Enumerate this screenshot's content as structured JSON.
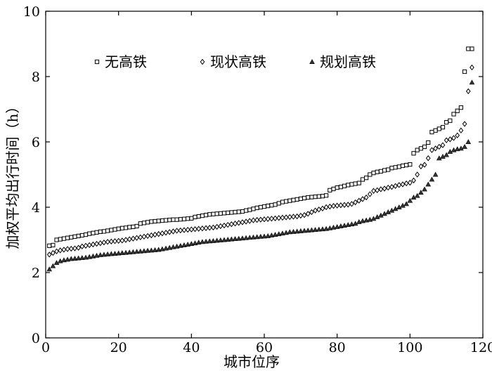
{
  "chart_data": {
    "type": "scatter",
    "title": "",
    "xlabel": "城市位序",
    "ylabel": "加权平均出行时间（h）",
    "xlim": [
      0,
      120
    ],
    "ylim": [
      0,
      10
    ],
    "xticks": [
      0,
      20,
      40,
      60,
      80,
      100,
      120
    ],
    "yticks": [
      0,
      2,
      4,
      6,
      8,
      10
    ],
    "grid": false,
    "legend_position": "top",
    "x": [
      1,
      2,
      3,
      4,
      5,
      6,
      7,
      8,
      9,
      10,
      11,
      12,
      13,
      14,
      15,
      16,
      17,
      18,
      19,
      20,
      21,
      22,
      23,
      24,
      25,
      26,
      27,
      28,
      29,
      30,
      31,
      32,
      33,
      34,
      35,
      36,
      37,
      38,
      39,
      40,
      41,
      42,
      43,
      44,
      45,
      46,
      47,
      48,
      49,
      50,
      51,
      52,
      53,
      54,
      55,
      56,
      57,
      58,
      59,
      60,
      61,
      62,
      63,
      64,
      65,
      66,
      67,
      68,
      69,
      70,
      71,
      72,
      73,
      74,
      75,
      76,
      77,
      78,
      79,
      80,
      81,
      82,
      83,
      84,
      85,
      86,
      87,
      88,
      89,
      90,
      91,
      92,
      93,
      94,
      95,
      96,
      97,
      98,
      99,
      100,
      101,
      102,
      103,
      104,
      105,
      106,
      107,
      108,
      109,
      110,
      111,
      112,
      113,
      114,
      115,
      116,
      117
    ],
    "series": [
      {
        "name": "无高铁",
        "marker": "square",
        "values": [
          2.82,
          2.84,
          3.0,
          3.02,
          3.04,
          3.06,
          3.08,
          3.1,
          3.12,
          3.14,
          3.16,
          3.19,
          3.21,
          3.23,
          3.25,
          3.26,
          3.28,
          3.3,
          3.32,
          3.34,
          3.36,
          3.37,
          3.39,
          3.4,
          3.42,
          3.5,
          3.52,
          3.54,
          3.56,
          3.57,
          3.58,
          3.59,
          3.6,
          3.61,
          3.62,
          3.62,
          3.63,
          3.64,
          3.65,
          3.66,
          3.7,
          3.72,
          3.74,
          3.76,
          3.78,
          3.79,
          3.8,
          3.81,
          3.82,
          3.83,
          3.84,
          3.85,
          3.86,
          3.87,
          3.9,
          3.92,
          3.95,
          3.98,
          4.0,
          4.02,
          4.04,
          4.06,
          4.08,
          4.12,
          4.16,
          4.18,
          4.2,
          4.22,
          4.24,
          4.26,
          4.28,
          4.3,
          4.31,
          4.32,
          4.33,
          4.34,
          4.36,
          4.52,
          4.56,
          4.6,
          4.62,
          4.65,
          4.68,
          4.7,
          4.72,
          4.74,
          4.85,
          4.9,
          5.0,
          5.05,
          5.08,
          5.1,
          5.13,
          5.15,
          5.2,
          5.22,
          5.24,
          5.27,
          5.29,
          5.31,
          5.65,
          5.75,
          5.8,
          5.85,
          5.98,
          6.3,
          6.35,
          6.4,
          6.45,
          6.6,
          6.65,
          6.85,
          6.95,
          7.05,
          8.15,
          8.85,
          8.85
        ]
      },
      {
        "name": "现状高铁",
        "marker": "diamond",
        "values": [
          2.55,
          2.6,
          2.65,
          2.68,
          2.7,
          2.72,
          2.73,
          2.74,
          2.76,
          2.8,
          2.82,
          2.84,
          2.86,
          2.88,
          2.9,
          2.92,
          2.94,
          2.95,
          2.96,
          2.97,
          2.98,
          3.0,
          3.02,
          3.04,
          3.06,
          3.08,
          3.1,
          3.12,
          3.14,
          3.16,
          3.18,
          3.2,
          3.22,
          3.24,
          3.26,
          3.28,
          3.29,
          3.3,
          3.31,
          3.32,
          3.33,
          3.34,
          3.35,
          3.36,
          3.37,
          3.38,
          3.4,
          3.42,
          3.44,
          3.46,
          3.48,
          3.5,
          3.52,
          3.54,
          3.56,
          3.58,
          3.6,
          3.61,
          3.62,
          3.63,
          3.64,
          3.65,
          3.66,
          3.67,
          3.68,
          3.69,
          3.7,
          3.71,
          3.72,
          3.74,
          3.76,
          3.8,
          3.85,
          3.9,
          3.93,
          3.96,
          4.0,
          4.02,
          4.04,
          4.05,
          4.06,
          4.07,
          4.08,
          4.1,
          4.15,
          4.2,
          4.25,
          4.3,
          4.4,
          4.5,
          4.52,
          4.55,
          4.57,
          4.6,
          4.62,
          4.65,
          4.68,
          4.7,
          4.73,
          4.75,
          4.82,
          5.0,
          5.25,
          5.3,
          5.5,
          5.75,
          5.8,
          5.85,
          5.9,
          6.05,
          6.08,
          6.12,
          6.2,
          6.35,
          6.55,
          7.55,
          8.28
        ]
      },
      {
        "name": "规划高铁",
        "marker": "triangle",
        "values": [
          2.1,
          2.2,
          2.3,
          2.35,
          2.38,
          2.4,
          2.42,
          2.43,
          2.44,
          2.45,
          2.46,
          2.48,
          2.5,
          2.52,
          2.54,
          2.55,
          2.56,
          2.57,
          2.58,
          2.59,
          2.6,
          2.61,
          2.62,
          2.63,
          2.64,
          2.65,
          2.66,
          2.67,
          2.68,
          2.69,
          2.7,
          2.72,
          2.74,
          2.76,
          2.78,
          2.8,
          2.82,
          2.84,
          2.86,
          2.88,
          2.9,
          2.92,
          2.94,
          2.95,
          2.96,
          2.97,
          2.98,
          2.99,
          3.0,
          3.01,
          3.02,
          3.03,
          3.04,
          3.05,
          3.06,
          3.07,
          3.08,
          3.09,
          3.1,
          3.11,
          3.12,
          3.14,
          3.16,
          3.18,
          3.2,
          3.22,
          3.24,
          3.25,
          3.26,
          3.27,
          3.28,
          3.29,
          3.3,
          3.31,
          3.32,
          3.33,
          3.34,
          3.36,
          3.38,
          3.4,
          3.42,
          3.44,
          3.46,
          3.48,
          3.5,
          3.55,
          3.58,
          3.6,
          3.62,
          3.65,
          3.7,
          3.75,
          3.8,
          3.85,
          3.9,
          3.95,
          4.0,
          4.05,
          4.1,
          4.2,
          4.3,
          4.35,
          4.45,
          4.55,
          4.7,
          4.85,
          5.0,
          5.5,
          5.55,
          5.6,
          5.7,
          5.75,
          5.78,
          5.8,
          5.85,
          6.0,
          7.82
        ]
      }
    ]
  }
}
